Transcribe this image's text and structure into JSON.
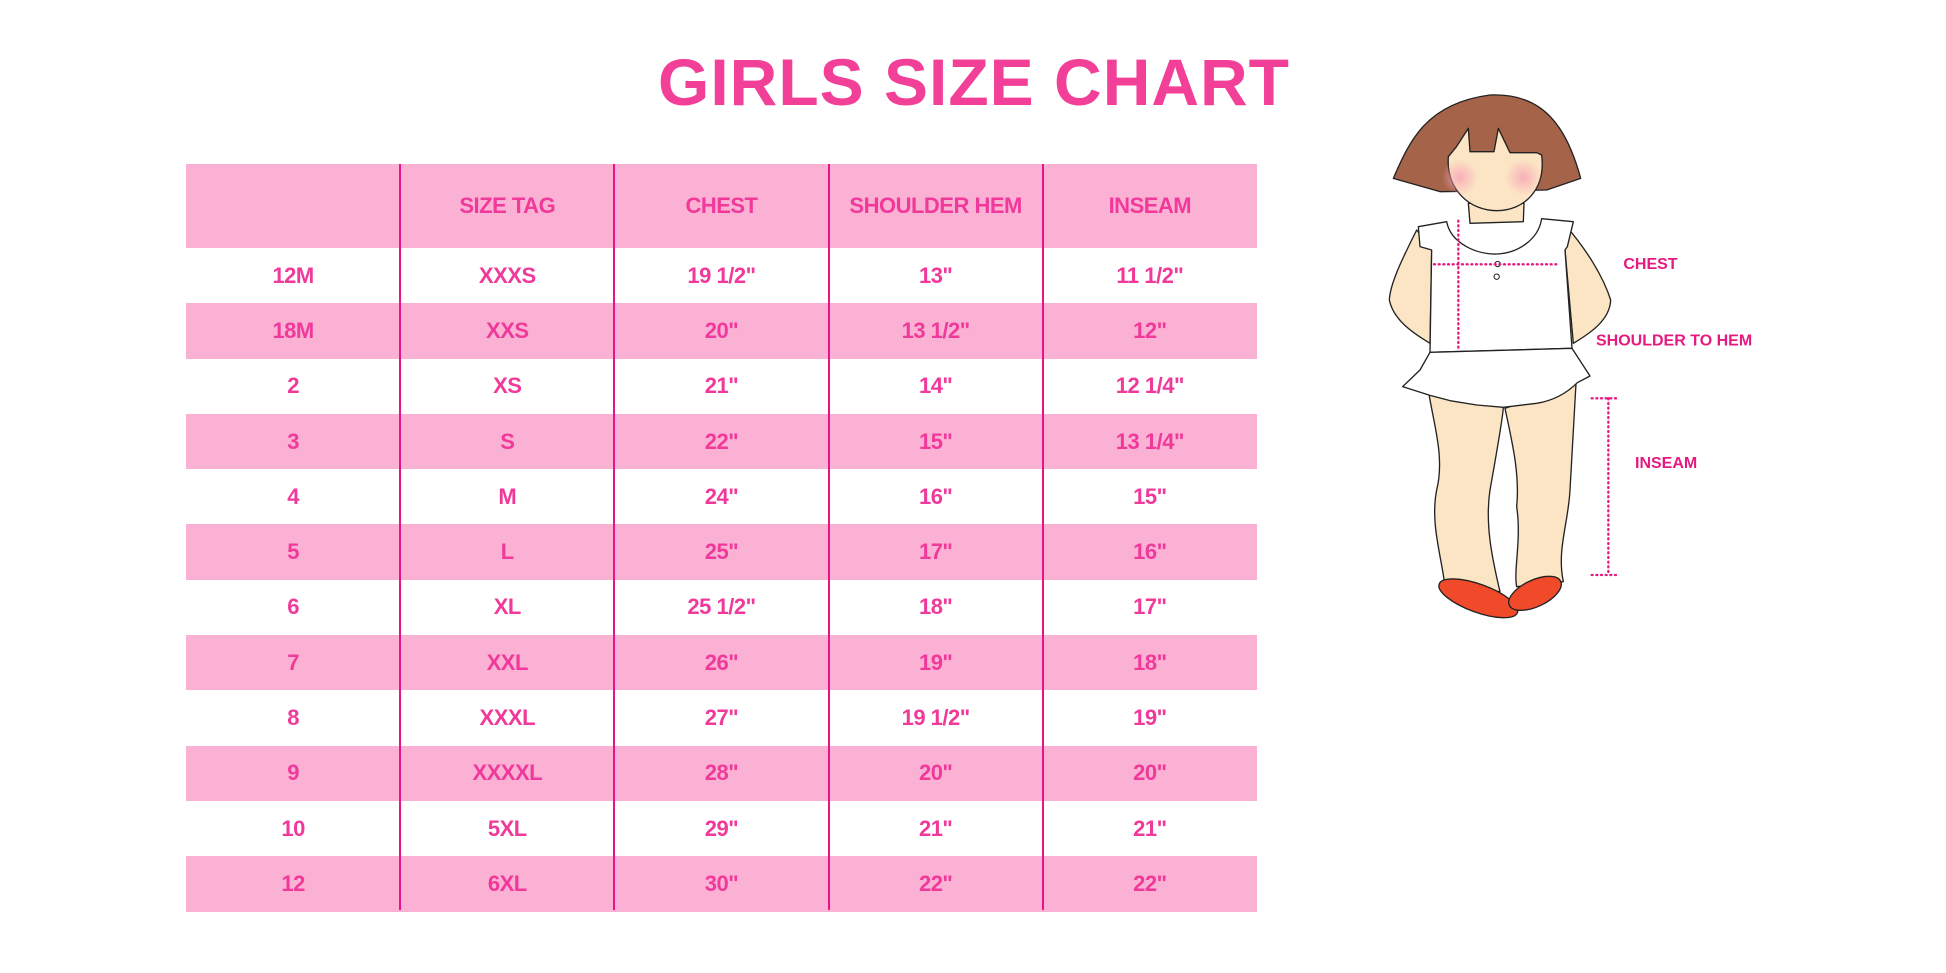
{
  "title": "GIRLS SIZE CHART",
  "table": {
    "headers": [
      "",
      "SIZE TAG",
      "CHEST",
      "SHOULDER HEM",
      "INSEAM"
    ],
    "rows": [
      [
        "12M",
        "XXXS",
        "19 1/2\"",
        "13\"",
        "11 1/2\""
      ],
      [
        "18M",
        "XXS",
        "20\"",
        "13 1/2\"",
        "12\""
      ],
      [
        "2",
        "XS",
        "21\"",
        "14\"",
        "12 1/4\""
      ],
      [
        "3",
        "S",
        "22\"",
        "15\"",
        "13 1/4\""
      ],
      [
        "4",
        "M",
        "24\"",
        "16\"",
        "15\""
      ],
      [
        "5",
        "L",
        "25\"",
        "17\"",
        "16\""
      ],
      [
        "6",
        "XL",
        "25 1/2\"",
        "18\"",
        "17\""
      ],
      [
        "7",
        "XXL",
        "26\"",
        "19\"",
        "18\""
      ],
      [
        "8",
        "XXXL",
        "27\"",
        "19 1/2\"",
        "19\""
      ],
      [
        "9",
        "XXXXL",
        "28\"",
        "20\"",
        "20\""
      ],
      [
        "10",
        "5XL",
        "29\"",
        "21\"",
        "21\""
      ],
      [
        "12",
        "6XL",
        "30\"",
        "22\"",
        "22\""
      ]
    ]
  },
  "figure": {
    "labels": {
      "chest": "CHEST",
      "shoulder_to_hem": "SHOULDER TO HEM",
      "inseam": "INSEAM"
    }
  },
  "colors": {
    "accent": "#f23f98",
    "header_bg": "#fbb1d4",
    "divider": "#e8128a",
    "measure_line": "#e5197f"
  }
}
